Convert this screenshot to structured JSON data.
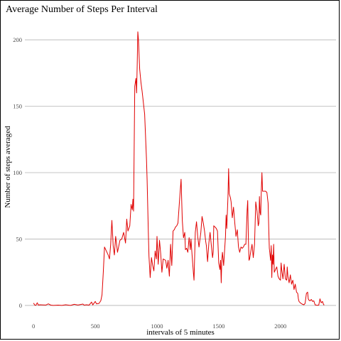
{
  "chart_data": {
    "type": "line",
    "title": "Average Number of Steps Per Interval",
    "xlabel": "intervals of 5 minutes",
    "ylabel": "Number of steps averaged",
    "xlim": [
      -70,
      2450
    ],
    "ylim": [
      -7,
      215
    ],
    "x_ticks": [
      0,
      500,
      1000,
      1500,
      2000
    ],
    "y_ticks": [
      0,
      50,
      100,
      150,
      200
    ],
    "grid": true,
    "series": [
      {
        "color": "#e00000",
        "points": [
          [
            0,
            1.7
          ],
          [
            10,
            0.3
          ],
          [
            20,
            0.1
          ],
          [
            30,
            2.0
          ],
          [
            40,
            0.2
          ],
          [
            50,
            0.5
          ],
          [
            80,
            0.4
          ],
          [
            100,
            0.3
          ],
          [
            120,
            1.2
          ],
          [
            140,
            0.2
          ],
          [
            160,
            0.0
          ],
          [
            200,
            0.2
          ],
          [
            230,
            0.0
          ],
          [
            260,
            0.5
          ],
          [
            300,
            0.0
          ],
          [
            330,
            0.8
          ],
          [
            360,
            0.3
          ],
          [
            400,
            1.0
          ],
          [
            410,
            0.2
          ],
          [
            430,
            0.5
          ],
          [
            450,
            0.2
          ],
          [
            470,
            2.5
          ],
          [
            480,
            0.4
          ],
          [
            500,
            3.0
          ],
          [
            510,
            1.2
          ],
          [
            530,
            1.5
          ],
          [
            545,
            3.5
          ],
          [
            555,
            8.0
          ],
          [
            565,
            25.0
          ],
          [
            575,
            44.0
          ],
          [
            590,
            41.0
          ],
          [
            605,
            38.0
          ],
          [
            615,
            35.0
          ],
          [
            625,
            46.0
          ],
          [
            630,
            56.0
          ],
          [
            635,
            64.0
          ],
          [
            645,
            45.0
          ],
          [
            655,
            38.0
          ],
          [
            665,
            52.0
          ],
          [
            680,
            40.0
          ],
          [
            700,
            49.0
          ],
          [
            715,
            50.0
          ],
          [
            730,
            55.0
          ],
          [
            745,
            47.0
          ],
          [
            755,
            65.0
          ],
          [
            765,
            56.0
          ],
          [
            780,
            60.0
          ],
          [
            790,
            76.0
          ],
          [
            800,
            72.0
          ],
          [
            805,
            80.0
          ],
          [
            810,
            71.0
          ],
          [
            820,
            165.0
          ],
          [
            830,
            171.0
          ],
          [
            835,
            160.0
          ],
          [
            840,
            183.0
          ],
          [
            845,
            206.0
          ],
          [
            850,
            200.0
          ],
          [
            860,
            178.0
          ],
          [
            870,
            168.0
          ],
          [
            880,
            161.0
          ],
          [
            900,
            144.0
          ],
          [
            915,
            110.0
          ],
          [
            920,
            94.0
          ],
          [
            930,
            55.0
          ],
          [
            935,
            37.0
          ],
          [
            945,
            21.0
          ],
          [
            955,
            36.0
          ],
          [
            965,
            30.0
          ],
          [
            975,
            26.0
          ],
          [
            985,
            41.0
          ],
          [
            995,
            35.0
          ],
          [
            1000,
            52.0
          ],
          [
            1010,
            31.0
          ],
          [
            1020,
            49.0
          ],
          [
            1030,
            39.0
          ],
          [
            1040,
            25.0
          ],
          [
            1050,
            35.0
          ],
          [
            1070,
            34.0
          ],
          [
            1080,
            28.0
          ],
          [
            1090,
            34.0
          ],
          [
            1100,
            22.0
          ],
          [
            1110,
            46.0
          ],
          [
            1120,
            30.0
          ],
          [
            1130,
            56.0
          ],
          [
            1140,
            57.0
          ],
          [
            1150,
            59.0
          ],
          [
            1160,
            60.0
          ],
          [
            1170,
            62.0
          ],
          [
            1185,
            82.0
          ],
          [
            1195,
            95.0
          ],
          [
            1205,
            64.0
          ],
          [
            1215,
            51.0
          ],
          [
            1225,
            55.0
          ],
          [
            1230,
            42.0
          ],
          [
            1240,
            43.0
          ],
          [
            1250,
            40.0
          ],
          [
            1260,
            51.0
          ],
          [
            1270,
            42.0
          ],
          [
            1275,
            50.0
          ],
          [
            1285,
            37.0
          ],
          [
            1295,
            24.0
          ],
          [
            1300,
            19.0
          ],
          [
            1310,
            55.0
          ],
          [
            1320,
            63.0
          ],
          [
            1330,
            52.0
          ],
          [
            1340,
            44.0
          ],
          [
            1355,
            55.0
          ],
          [
            1365,
            67.0
          ],
          [
            1375,
            62.0
          ],
          [
            1385,
            56.0
          ],
          [
            1395,
            48.0
          ],
          [
            1400,
            45.0
          ],
          [
            1410,
            33.0
          ],
          [
            1420,
            47.0
          ],
          [
            1430,
            55.0
          ],
          [
            1440,
            45.0
          ],
          [
            1450,
            36.0
          ],
          [
            1455,
            40.0
          ],
          [
            1460,
            60.0
          ],
          [
            1470,
            59.0
          ],
          [
            1480,
            58.0
          ],
          [
            1490,
            56.0
          ],
          [
            1500,
            32.0
          ],
          [
            1510,
            27.0
          ],
          [
            1515,
            34.0
          ],
          [
            1520,
            17.0
          ],
          [
            1525,
            34.0
          ],
          [
            1530,
            40.0
          ],
          [
            1540,
            30.0
          ],
          [
            1555,
            52.0
          ],
          [
            1560,
            68.0
          ],
          [
            1565,
            58.0
          ],
          [
            1575,
            82.0
          ],
          [
            1580,
            103.0
          ],
          [
            1585,
            84.0
          ],
          [
            1595,
            81.0
          ],
          [
            1600,
            78.0
          ],
          [
            1610,
            66.0
          ],
          [
            1620,
            74.0
          ],
          [
            1630,
            62.0
          ],
          [
            1640,
            52.0
          ],
          [
            1650,
            57.0
          ],
          [
            1660,
            44.0
          ],
          [
            1670,
            40.0
          ],
          [
            1680,
            44.0
          ],
          [
            1690,
            43.0
          ],
          [
            1700,
            44.0
          ],
          [
            1710,
            46.0
          ],
          [
            1720,
            46.0
          ],
          [
            1730,
            72.0
          ],
          [
            1735,
            79.0
          ],
          [
            1740,
            50.0
          ],
          [
            1745,
            34.0
          ],
          [
            1750,
            35.0
          ],
          [
            1760,
            41.0
          ],
          [
            1770,
            46.0
          ],
          [
            1780,
            36.0
          ],
          [
            1790,
            46.0
          ],
          [
            1800,
            78.0
          ],
          [
            1810,
            71.0
          ],
          [
            1820,
            60.0
          ],
          [
            1825,
            62.0
          ],
          [
            1830,
            82.0
          ],
          [
            1835,
            70.0
          ],
          [
            1840,
            68.0
          ],
          [
            1845,
            86.0
          ],
          [
            1850,
            100.0
          ],
          [
            1855,
            86.0
          ],
          [
            1870,
            86.0
          ],
          [
            1880,
            86.0
          ],
          [
            1890,
            85.0
          ],
          [
            1900,
            77.0
          ],
          [
            1905,
            58.0
          ],
          [
            1910,
            43.0
          ],
          [
            1920,
            34.0
          ],
          [
            1925,
            45.0
          ],
          [
            1930,
            21.0
          ],
          [
            1935,
            38.0
          ],
          [
            1940,
            31.0
          ],
          [
            1945,
            46.0
          ],
          [
            1950,
            25.0
          ],
          [
            1960,
            27.0
          ],
          [
            1970,
            29.0
          ],
          [
            1980,
            22.0
          ],
          [
            1990,
            20.0
          ],
          [
            2000,
            19.0
          ],
          [
            2005,
            32.0
          ],
          [
            2010,
            27.0
          ],
          [
            2020,
            20.0
          ],
          [
            2030,
            31.0
          ],
          [
            2040,
            20.0
          ],
          [
            2050,
            19.0
          ],
          [
            2055,
            29.0
          ],
          [
            2060,
            22.0
          ],
          [
            2070,
            17.0
          ],
          [
            2080,
            23.0
          ],
          [
            2090,
            16.0
          ],
          [
            2100,
            19.0
          ],
          [
            2110,
            12.0
          ],
          [
            2120,
            16.0
          ],
          [
            2130,
            10.0
          ],
          [
            2140,
            9.0
          ],
          [
            2145,
            5.0
          ],
          [
            2150,
            3.0
          ],
          [
            2160,
            2.0
          ],
          [
            2175,
            1.0
          ],
          [
            2190,
            0.5
          ],
          [
            2200,
            1.5
          ],
          [
            2210,
            9.0
          ],
          [
            2220,
            10.0
          ],
          [
            2225,
            5.0
          ],
          [
            2230,
            4.0
          ],
          [
            2240,
            3.5
          ],
          [
            2250,
            4.5
          ],
          [
            2260,
            3.0
          ],
          [
            2270,
            3.5
          ],
          [
            2280,
            0.5
          ],
          [
            2290,
            0.2
          ],
          [
            2300,
            0.1
          ],
          [
            2310,
            0.3
          ],
          [
            2320,
            5.0
          ],
          [
            2330,
            2.0
          ],
          [
            2340,
            3.0
          ],
          [
            2350,
            0.5
          ],
          [
            2355,
            0.5
          ]
        ]
      }
    ]
  }
}
